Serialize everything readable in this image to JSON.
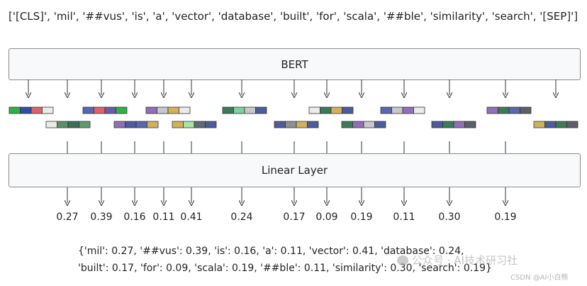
{
  "input_tokens": "['[CLS]', 'mil', '##vus', 'is', 'a', 'vector', 'database', 'built', 'for', 'scala', '##ble', 'similarity', 'search', '[SEP]']",
  "bert_label": "BERT",
  "linear_label": "Linear Layer",
  "scores": [
    "0.27",
    "0.39",
    "0.16",
    "0.11",
    "0.41",
    "0.24",
    "0.17",
    "0.09",
    "0.19",
    "0.11",
    "0.30",
    "0.19"
  ],
  "result_line_1": "{'mil': 0.27, '##vus': 0.39, 'is': 0.16, 'a': 0.11, 'vector': 0.41, 'database': 0.24,",
  "result_line_2": "'built': 0.17, 'for': 0.09, 'scala': 0.19, '##ble': 0.11, 'similarity': 0.30, 'search': 0.19}",
  "watermark": "公众号 · AI技术研习社",
  "watermark_2": "CSDN @AI小白熊",
  "embeddings": [
    [
      "#2fb04a",
      "#2e4fa8",
      "#d9636b",
      "#e9ece7"
    ],
    [
      "#e9ece7",
      "#5f8f67",
      "#3c6f58",
      "#5d9b6a"
    ],
    [
      "#5a66b0",
      "#d9636b",
      "#6b5aa5",
      "#2fb04a"
    ],
    [
      "#8f6fb8",
      "#4c5c9c",
      "#5a66b0",
      "#d1b25a"
    ],
    [
      "#8f6fb8",
      "#c8c8cc",
      "#d1b25a",
      "#e9ece7"
    ],
    [
      "#d1b25a",
      "#a8e6a6",
      "#5e6a78",
      "#4c5c9c"
    ],
    [
      "#3c7a5a",
      "#7fcf9f",
      "#c8c8cc",
      "#4c5c9c"
    ],
    [
      "#4c5c9c",
      "#8f8f95",
      "#d1b25a",
      "#4c5c9c"
    ],
    [
      "#e9ece7",
      "#3c7a5a",
      "#d1b25a",
      "#4c5c9c"
    ],
    [
      "#3c7a5a",
      "#8f6fb8",
      "#c8c8cc",
      "#4c5c9c"
    ],
    [
      "#5a66b0",
      "#c8c8cc",
      "#8f6fb8",
      "#e9ece7"
    ],
    [
      "#4c5c9c",
      "#3c7a5a",
      "#8f6fb8",
      "#5e5e66"
    ],
    [
      "#8f6fb8",
      "#3c7a5a",
      "#5a66b0",
      "#5e5e66"
    ],
    [
      "#d1b25a",
      "#4c5c9c",
      "#3c7a5a",
      "#5e5e66"
    ]
  ]
}
